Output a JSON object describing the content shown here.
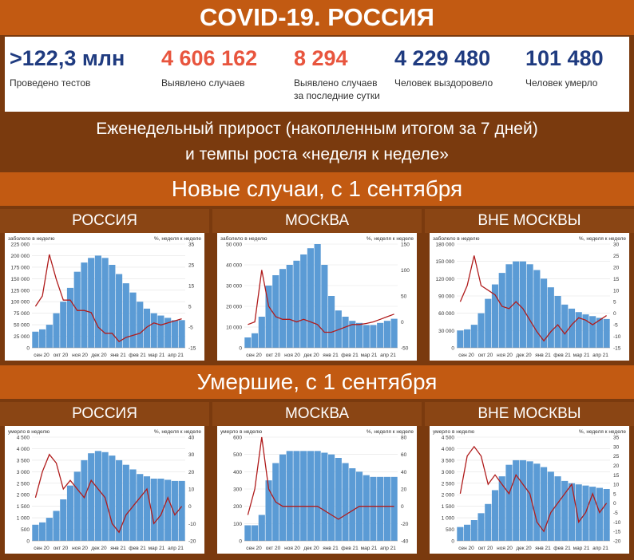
{
  "title": "COVID-19. РОССИЯ",
  "stats": [
    {
      "value": ">122,3 млн",
      "label": "Проведено тестов",
      "color": "#1f3b80"
    },
    {
      "value": "4 606 162",
      "label": "Выявлено случаев",
      "color": "#e8553e"
    },
    {
      "value": "8 294",
      "label": "Выявлено случаев за последние сутки",
      "color": "#e8553e"
    },
    {
      "value": "4 229 480",
      "label": "Человек выздоровело",
      "color": "#1f3b80"
    },
    {
      "value": "101 480",
      "label": "Человек умерло",
      "color": "#1f3b80"
    }
  ],
  "subtitle_line1": "Еженедельный прирост (накопленным итогом за 7 дней)",
  "subtitle_line2": "и темпы роста «неделя к неделе»",
  "section_cases": "Новые случаи, с 1 сентября",
  "section_deaths": "Умершие, с 1 сентября",
  "colors": {
    "bars": "#5b9bd5",
    "line": "#b01c1c",
    "banner": "#c25a12",
    "dark": "#7a3a0e"
  },
  "chart_data": [
    {
      "id": "cases-russia",
      "caption": "РОССИЯ",
      "type": "bar",
      "left_label": "заболело в неделю",
      "right_label": "%, неделя к неделе",
      "x": [
        "сен 20",
        "окт 20",
        "ноя 20",
        "дек 20",
        "янв 21",
        "фев 21",
        "мар 21",
        "апр 21"
      ],
      "ylim": [
        0,
        225000
      ],
      "yticks": [
        0,
        25000,
        50000,
        75000,
        100000,
        125000,
        150000,
        175000,
        200000,
        225000
      ],
      "y2lim": [
        -15,
        35
      ],
      "y2ticks": [
        -15,
        -5,
        5,
        15,
        25,
        35
      ],
      "bars": [
        35000,
        40000,
        50000,
        75000,
        100000,
        130000,
        165000,
        185000,
        195000,
        200000,
        195000,
        180000,
        160000,
        140000,
        120000,
        100000,
        85000,
        75000,
        70000,
        65000,
        60000,
        60000
      ],
      "line": [
        5,
        10,
        30,
        18,
        8,
        8,
        3,
        3,
        2,
        -5,
        -8,
        -8,
        -12,
        -10,
        -9,
        -8,
        -5,
        -3,
        -4,
        -3,
        -2,
        -1
      ]
    },
    {
      "id": "cases-moscow",
      "caption": "МОСКВА",
      "type": "bar",
      "left_label": "заболело в неделю",
      "right_label": "%, неделя к неделе",
      "x": [
        "сен 20",
        "окт 20",
        "ноя 20",
        "дек 20",
        "янв 21",
        "фев 21",
        "мар 21",
        "апр 21"
      ],
      "ylim": [
        0,
        50000
      ],
      "yticks": [
        0,
        10000,
        20000,
        30000,
        40000,
        50000
      ],
      "y2lim": [
        -50,
        150
      ],
      "y2ticks": [
        -50,
        0,
        50,
        100,
        150
      ],
      "bars": [
        5000,
        7000,
        15000,
        30000,
        35000,
        38000,
        40000,
        42000,
        45000,
        48000,
        50000,
        40000,
        25000,
        18000,
        15000,
        13000,
        12000,
        11000,
        11000,
        12000,
        13000,
        14000
      ],
      "line": [
        -5,
        0,
        100,
        30,
        10,
        5,
        5,
        0,
        5,
        0,
        -5,
        -20,
        -20,
        -15,
        -10,
        -5,
        -5,
        -3,
        0,
        5,
        10,
        15
      ]
    },
    {
      "id": "cases-outside",
      "caption": "ВНЕ МОСКВЫ",
      "type": "bar",
      "left_label": "заболело в неделю",
      "right_label": "%, неделя к неделе",
      "x": [
        "сен 20",
        "окт 20",
        "ноя 20",
        "дек 20",
        "янв 21",
        "фев 21",
        "мар 21",
        "апр 21"
      ],
      "ylim": [
        0,
        180000
      ],
      "yticks": [
        0,
        30000,
        60000,
        90000,
        120000,
        150000,
        180000
      ],
      "y2lim": [
        -15,
        30
      ],
      "y2ticks": [
        -15,
        -10,
        -5,
        0,
        5,
        10,
        15,
        20,
        25,
        30
      ],
      "bars": [
        30000,
        32000,
        40000,
        60000,
        85000,
        110000,
        130000,
        145000,
        150000,
        150000,
        145000,
        135000,
        120000,
        105000,
        90000,
        75000,
        68000,
        62000,
        58000,
        55000,
        52000,
        50000
      ],
      "line": [
        5,
        12,
        25,
        12,
        10,
        8,
        3,
        2,
        5,
        2,
        -3,
        -8,
        -12,
        -8,
        -5,
        -9,
        -5,
        -2,
        -3,
        -5,
        -3,
        -1
      ]
    },
    {
      "id": "deaths-russia",
      "caption": "РОССИЯ",
      "type": "bar",
      "left_label": "умерло в неделю",
      "right_label": "%, неделя к неделе",
      "x": [
        "сен 20",
        "окт 20",
        "ноя 20",
        "дек 20",
        "янв 21",
        "фев 21",
        "мар 21",
        "апр 21"
      ],
      "ylim": [
        0,
        4500
      ],
      "yticks": [
        0,
        500,
        1000,
        1500,
        2000,
        2500,
        3000,
        3500,
        4000,
        4500
      ],
      "y2lim": [
        -20,
        40
      ],
      "y2ticks": [
        -20,
        -10,
        0,
        10,
        20,
        30,
        40
      ],
      "bars": [
        700,
        800,
        1000,
        1300,
        1800,
        2400,
        3000,
        3500,
        3800,
        3900,
        3850,
        3700,
        3500,
        3300,
        3100,
        2900,
        2800,
        2700,
        2700,
        2650,
        2600,
        2600
      ],
      "line": [
        5,
        20,
        30,
        25,
        10,
        15,
        10,
        5,
        15,
        10,
        5,
        -10,
        -15,
        -5,
        0,
        5,
        10,
        -10,
        -5,
        5,
        -5,
        0
      ]
    },
    {
      "id": "deaths-moscow",
      "caption": "МОСКВА",
      "type": "bar",
      "left_label": "умерло в неделю",
      "right_label": "%, неделя к неделе",
      "x": [
        "сен 20",
        "окт 20",
        "ноя 20",
        "дек 20",
        "янв 21",
        "фев 21",
        "мар 21",
        "апр 21"
      ],
      "ylim": [
        0,
        600
      ],
      "yticks": [
        0,
        100,
        200,
        300,
        400,
        500,
        600
      ],
      "y2lim": [
        -40,
        80
      ],
      "y2ticks": [
        -40,
        -20,
        0,
        20,
        40,
        60,
        80
      ],
      "bars": [
        90,
        90,
        150,
        350,
        450,
        500,
        520,
        520,
        520,
        520,
        520,
        510,
        500,
        480,
        450,
        420,
        400,
        380,
        370,
        370,
        370,
        370
      ],
      "line": [
        -10,
        20,
        80,
        20,
        5,
        0,
        0,
        0,
        0,
        0,
        0,
        -5,
        -10,
        -15,
        -10,
        -5,
        0,
        0,
        0,
        0,
        0,
        0
      ]
    },
    {
      "id": "deaths-outside",
      "caption": "ВНЕ МОСКВЫ",
      "type": "bar",
      "left_label": "умерло в неделю",
      "right_label": "%, неделя к неделе",
      "x": [
        "сен 20",
        "окт 20",
        "ноя 20",
        "дек 20",
        "янв 21",
        "фев 21",
        "мар 21",
        "апр 21"
      ],
      "ylim": [
        0,
        4500
      ],
      "yticks": [
        0,
        500,
        1000,
        1500,
        2000,
        2500,
        3000,
        3500,
        4000,
        4500
      ],
      "y2lim": [
        -20,
        35
      ],
      "y2ticks": [
        -20,
        -15,
        -10,
        -5,
        0,
        5,
        10,
        15,
        20,
        25,
        30,
        35
      ],
      "bars": [
        600,
        700,
        900,
        1200,
        1600,
        2200,
        2800,
        3300,
        3500,
        3500,
        3450,
        3350,
        3200,
        3000,
        2800,
        2600,
        2500,
        2450,
        2400,
        2350,
        2300,
        2250
      ],
      "line": [
        5,
        25,
        30,
        25,
        10,
        15,
        10,
        5,
        15,
        10,
        5,
        -10,
        -15,
        -5,
        0,
        5,
        10,
        -10,
        -5,
        5,
        -5,
        0
      ]
    }
  ]
}
